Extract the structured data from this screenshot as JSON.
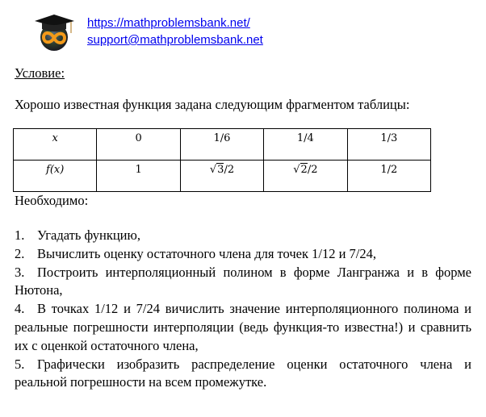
{
  "header": {
    "url": "https://mathproblemsbank.net/",
    "email": "support@mathproblemsbank.net",
    "logo": "graduation-cap-globe-infinity-logo"
  },
  "condition_label": "Условие:",
  "intro": "Хорошо известная функция задана следующим фрагментом таблицы:",
  "table": {
    "rows": [
      {
        "label": "x",
        "cells": [
          "0",
          "1/6",
          "1/4",
          "1/3"
        ]
      },
      {
        "label": "f(x)",
        "cells": [
          "1",
          "√3/2",
          "√2/2",
          "1/2"
        ]
      }
    ]
  },
  "required_label": "Необходимо:",
  "tasks": [
    {
      "num": "1.",
      "text": "Угадать функцию,"
    },
    {
      "num": "2.",
      "text": "Вычислить оценку остаточного члена для точек 1/12 и 7/24,"
    },
    {
      "num": "3.",
      "text": "Построить интерполяционный полином в форме Лангранжа и в форме Нютона,"
    },
    {
      "num": "4.",
      "text": "В точках 1/12 и 7/24 вичислить значение интерполяционного полинома и реальные погрешности интерполяции (ведь функция-то известна!) и сравнить их с оценкой остаточного члена,"
    },
    {
      "num": "5.",
      "text": "Графически изобразить распределение оценки остаточного члена и реальной погрешности на всем промежутке."
    }
  ]
}
